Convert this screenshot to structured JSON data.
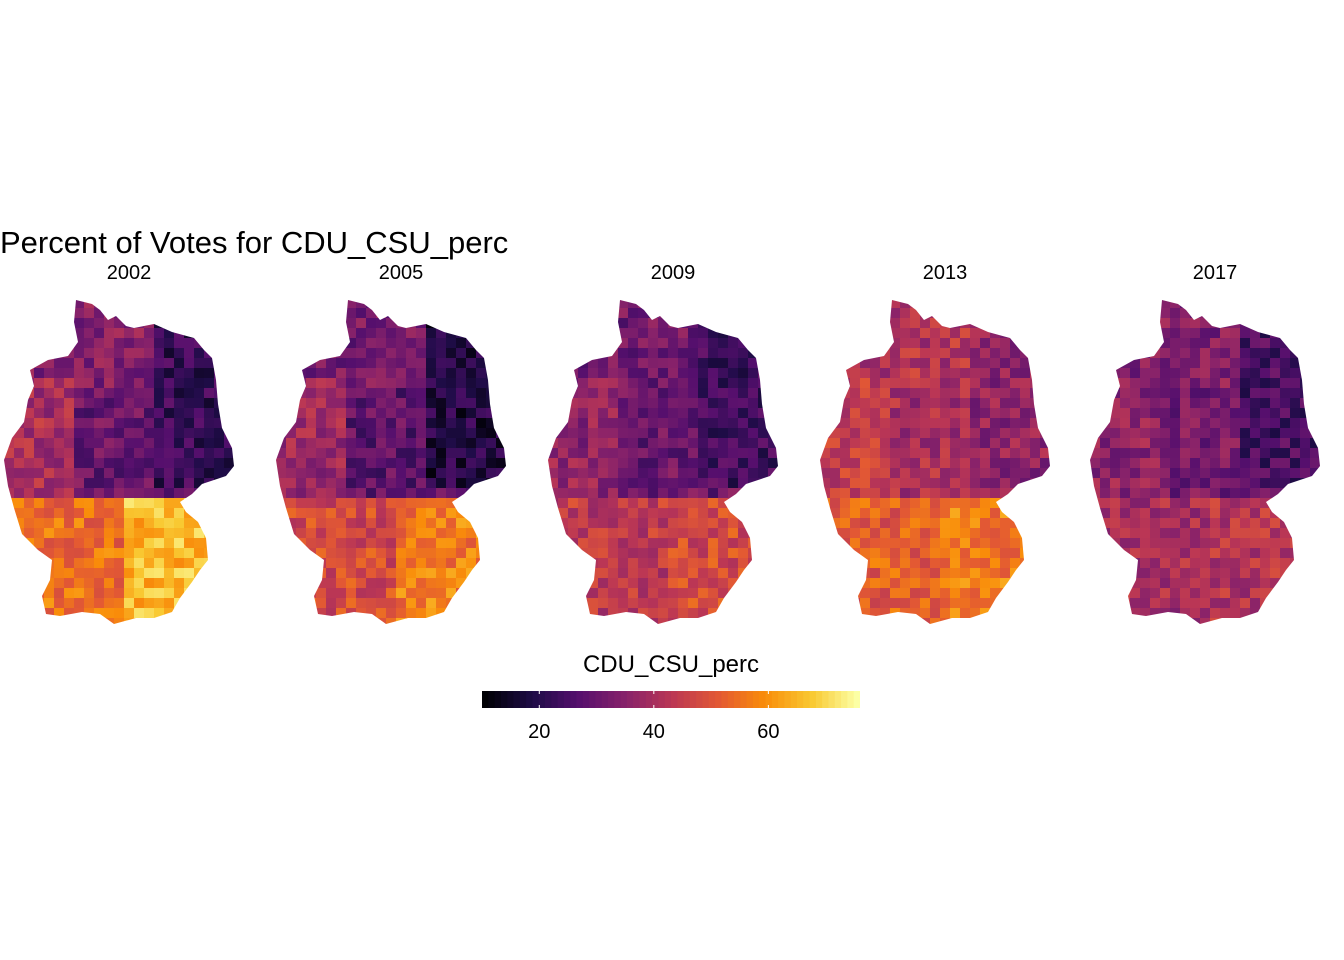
{
  "title": "Percent of Votes for CDU_CSU_perc",
  "facets": [
    {
      "label": "2002",
      "north": 34,
      "central": 30,
      "east": 22,
      "west": 40,
      "southwest": 55,
      "bavaria": 66
    },
    {
      "label": "2005",
      "north": 32,
      "central": 28,
      "east": 18,
      "west": 38,
      "southwest": 48,
      "bavaria": 57
    },
    {
      "label": "2009",
      "north": 31,
      "central": 30,
      "east": 24,
      "west": 36,
      "southwest": 44,
      "bavaria": 48
    },
    {
      "label": "2013",
      "north": 42,
      "central": 40,
      "east": 36,
      "west": 45,
      "southwest": 52,
      "bavaria": 57
    },
    {
      "label": "2017",
      "north": 34,
      "central": 32,
      "east": 25,
      "west": 36,
      "southwest": 40,
      "bavaria": 42
    }
  ],
  "legend": {
    "title": "CDU_CSU_perc",
    "min": 10,
    "max": 76,
    "ticks": [
      {
        "label": "20",
        "value": 20
      },
      {
        "label": "40",
        "value": 40
      },
      {
        "label": "60",
        "value": 60
      }
    ],
    "palette": "inferno"
  }
}
